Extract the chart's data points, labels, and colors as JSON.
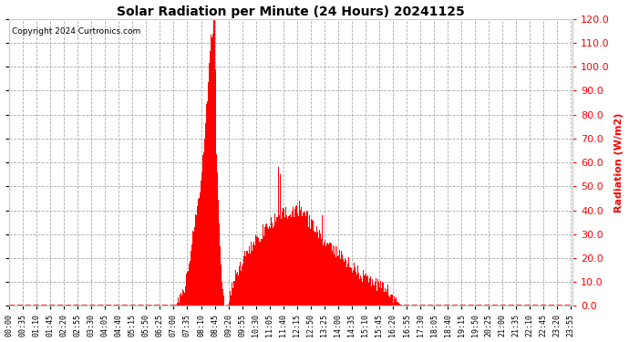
{
  "title": "Solar Radiation per Minute (24 Hours) 20241125",
  "ylabel": "Radiation (W/m2)",
  "copyright": "Copyright 2024 Curtronics.com",
  "ylim": [
    0.0,
    120.0
  ],
  "yticks": [
    0.0,
    10.0,
    20.0,
    30.0,
    40.0,
    50.0,
    60.0,
    70.0,
    80.0,
    90.0,
    100.0,
    110.0,
    120.0
  ],
  "bar_color": "#ff0000",
  "line_color": "#ff0000",
  "bg_color": "#ffffff",
  "title_color": "#000000",
  "ylabel_color": "#ff0000",
  "copyright_color": "#000000",
  "total_minutes": 1440,
  "x_labels": [
    "00:00",
    "00:35",
    "01:10",
    "01:45",
    "02:20",
    "02:55",
    "03:30",
    "04:05",
    "04:40",
    "05:15",
    "05:50",
    "06:25",
    "07:00",
    "07:35",
    "08:10",
    "08:45",
    "09:20",
    "09:55",
    "10:30",
    "11:05",
    "11:40",
    "12:15",
    "12:50",
    "13:25",
    "14:00",
    "14:35",
    "15:10",
    "15:45",
    "16:20",
    "16:55",
    "17:30",
    "18:05",
    "18:40",
    "19:15",
    "19:50",
    "20:25",
    "21:00",
    "21:35",
    "22:10",
    "22:45",
    "23:20",
    "23:55"
  ]
}
